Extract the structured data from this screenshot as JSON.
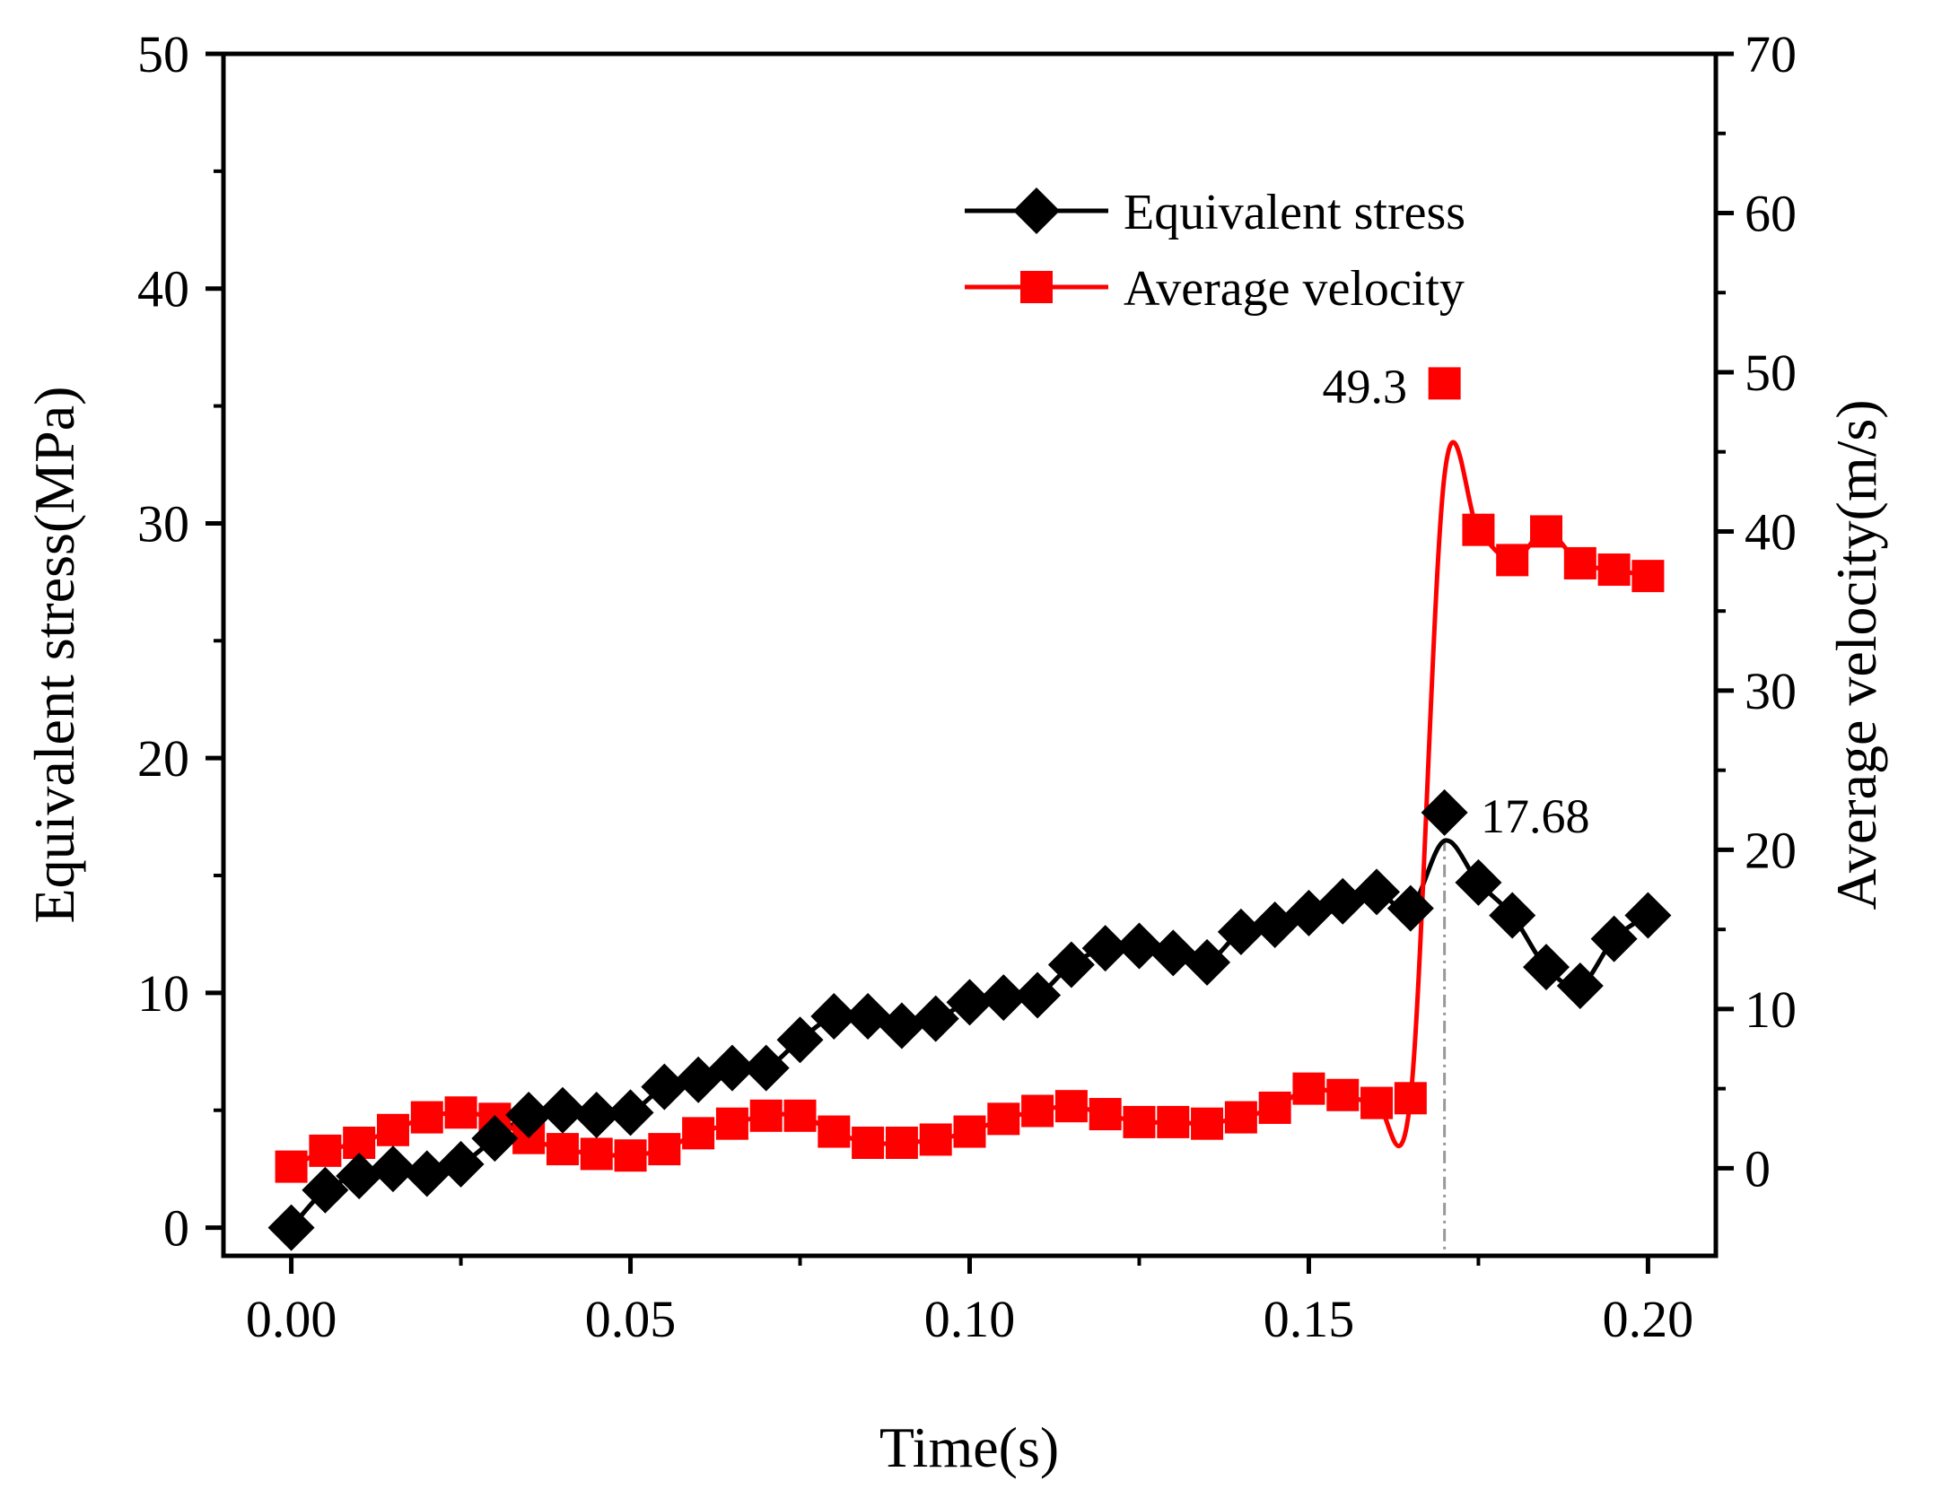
{
  "chart_data": {
    "type": "line",
    "title": "",
    "xlabel": "Time(s)",
    "ylabel": "Equivalent stress(MPa)",
    "y2label": "Average velocity(m/s)",
    "xlim": [
      -0.01,
      0.21
    ],
    "ylim": [
      -1.2,
      50
    ],
    "y2lim": [
      -5.5,
      70
    ],
    "x_ticks": [
      "0.00",
      "0.05",
      "0.10",
      "0.15",
      "0.20"
    ],
    "x_tick_values": [
      0,
      0.05,
      0.1,
      0.15,
      0.2
    ],
    "y_ticks": [
      "0",
      "10",
      "20",
      "30",
      "40",
      "50"
    ],
    "y_tick_values": [
      0,
      10,
      20,
      30,
      40,
      50
    ],
    "y2_ticks": [
      "0",
      "10",
      "20",
      "30",
      "40",
      "50",
      "60",
      "70"
    ],
    "y2_tick_values": [
      0,
      10,
      20,
      30,
      40,
      50,
      60,
      70
    ],
    "legend_position": "top-right",
    "colors": {
      "stress": "#000000",
      "velocity": "#ff0000",
      "guide": "#999999"
    },
    "series": [
      {
        "name": "Equivalent stress",
        "axis": "left",
        "marker": "diamond",
        "x": [
          0,
          0.005,
          0.01,
          0.015,
          0.02,
          0.025,
          0.03,
          0.035,
          0.04,
          0.045,
          0.05,
          0.055,
          0.06,
          0.065,
          0.07,
          0.075,
          0.08,
          0.085,
          0.09,
          0.095,
          0.1,
          0.105,
          0.11,
          0.115,
          0.12,
          0.125,
          0.13,
          0.135,
          0.14,
          0.145,
          0.15,
          0.155,
          0.16,
          0.165,
          0.17,
          0.175,
          0.18,
          0.185,
          0.19,
          0.195,
          0.2
        ],
        "values": [
          0.0,
          1.6,
          2.2,
          2.5,
          2.3,
          2.7,
          3.8,
          4.8,
          5.0,
          4.8,
          4.9,
          6.0,
          6.3,
          6.8,
          6.8,
          8.0,
          9.0,
          9.0,
          8.6,
          8.9,
          9.6,
          9.8,
          9.9,
          11.2,
          11.9,
          12.0,
          11.7,
          11.3,
          12.6,
          12.9,
          13.4,
          13.9,
          14.3,
          13.6,
          17.68,
          14.7,
          13.3,
          11.1,
          10.3,
          12.3,
          13.3
        ]
      },
      {
        "name": "Average velocity",
        "axis": "right",
        "marker": "square",
        "x": [
          0,
          0.005,
          0.01,
          0.015,
          0.02,
          0.025,
          0.03,
          0.035,
          0.04,
          0.045,
          0.05,
          0.055,
          0.06,
          0.065,
          0.07,
          0.075,
          0.08,
          0.085,
          0.09,
          0.095,
          0.1,
          0.105,
          0.11,
          0.115,
          0.12,
          0.125,
          0.13,
          0.135,
          0.14,
          0.145,
          0.15,
          0.155,
          0.16,
          0.165,
          0.17,
          0.175,
          0.18,
          0.185,
          0.19,
          0.195,
          0.2
        ],
        "values": [
          0.1,
          1.1,
          1.6,
          2.4,
          3.2,
          3.5,
          3.1,
          1.9,
          1.2,
          0.9,
          0.8,
          1.2,
          2.2,
          2.8,
          3.3,
          3.3,
          2.3,
          1.6,
          1.6,
          1.8,
          2.3,
          3.1,
          3.6,
          3.9,
          3.4,
          2.9,
          2.9,
          2.8,
          3.2,
          3.8,
          5.0,
          4.6,
          4.1,
          4.4,
          49.3,
          40.1,
          38.2,
          40.0,
          38.0,
          37.6,
          37.2
        ]
      }
    ],
    "annotations": [
      {
        "text": "49.3",
        "series": "Average velocity",
        "x": 0.17,
        "value": 49.3
      },
      {
        "text": "17.68",
        "series": "Equivalent stress",
        "x": 0.17,
        "value": 17.68
      }
    ]
  }
}
